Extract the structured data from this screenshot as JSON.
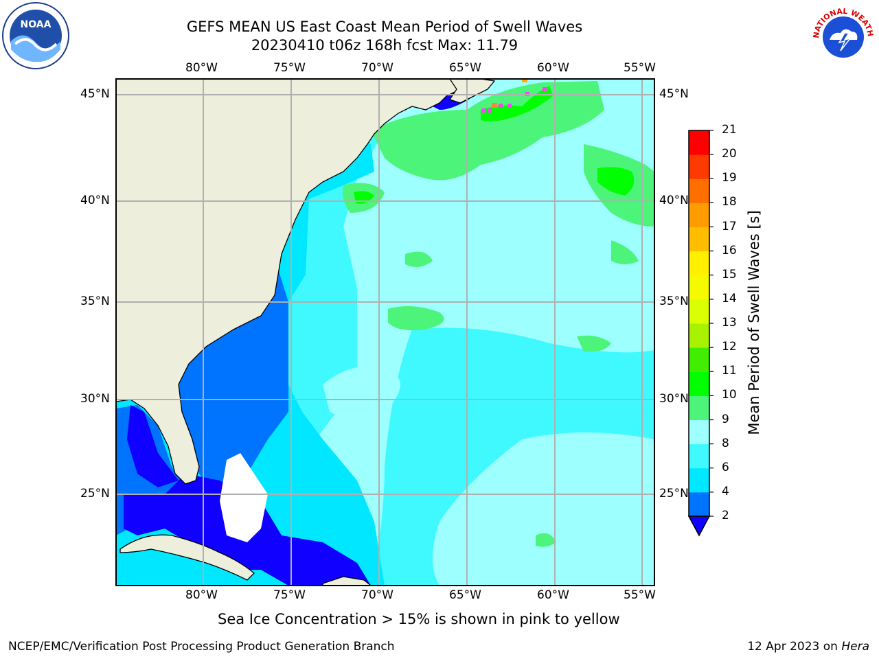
{
  "header": {
    "title": "GEFS MEAN US East Coast Mean Period of Swell Waves",
    "subtitle": "20230410 t06z 168h fcst   Max: 11.79"
  },
  "map": {
    "lon_labels": [
      "80°W",
      "75°W",
      "70°W",
      "65°W",
      "60°W",
      "55°W"
    ],
    "lat_labels": [
      "45°N",
      "40°N",
      "35°N",
      "30°N",
      "25°N"
    ]
  },
  "colorbar": {
    "title": "Mean Period of Swell Waves [s]",
    "tick_labels": [
      "2",
      "4",
      "6",
      "8",
      "9",
      "10",
      "11",
      "12",
      "13",
      "14",
      "15",
      "16",
      "17",
      "18",
      "19",
      "20",
      "21"
    ],
    "colors": [
      "#0f00ff",
      "#0073ff",
      "#00e7ff",
      "#40f9ff",
      "#9effff",
      "#4df47a",
      "#00ff00",
      "#42ee00",
      "#a8f100",
      "#d9ff00",
      "#f5fa00",
      "#fff000",
      "#ffbd00",
      "#ff9c00",
      "#ff6f00",
      "#ff3a00",
      "#ff0000"
    ],
    "extend_color": "#0f00ff"
  },
  "footer": {
    "note": "Sea Ice Concentration > 15% is shown in pink to yellow",
    "left": "NCEP/EMC/Verification Post Processing Product Generation Branch",
    "right_date": "12 Apr 2023 on",
    "right_host": "Hera"
  },
  "logos": {
    "noaa_text": "NOAA",
    "nws_text": "NATIONAL WEATHER SERVICE"
  }
}
